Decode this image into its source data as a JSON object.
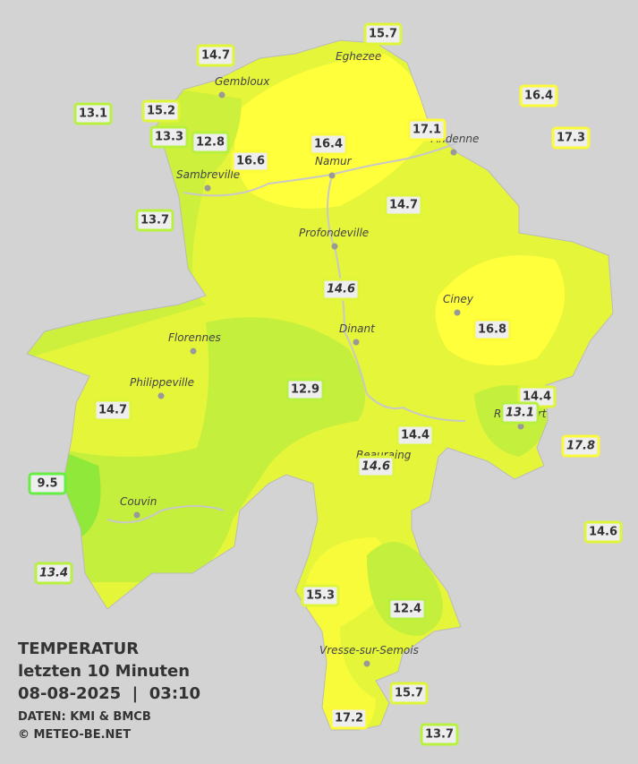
{
  "title": {
    "lines": [
      "TEMPERATUR",
      "letzten 10 Minuten",
      "08-08-2025  |  03:10"
    ],
    "credits": [
      "DATEN: KMI & BMCB",
      "© METEO-BE.NET"
    ]
  },
  "cities": [
    "Gembloux",
    "Eghezee",
    "Andenne",
    "Namur",
    "Sambreville",
    "Profondeville",
    "Ciney",
    "Dinant",
    "Florennes",
    "Philippeville",
    "Couvin",
    "Vresse-sur-Semois",
    "Rochefort",
    "Beauraing"
  ],
  "stations": [
    {
      "value": 15.7
    },
    {
      "value": 14.7
    },
    {
      "value": 16.4
    },
    {
      "value": 13.1
    },
    {
      "value": 15.2
    },
    {
      "value": 13.3
    },
    {
      "value": 12.8
    },
    {
      "value": 16.6
    },
    {
      "value": 16.4
    },
    {
      "value": 17.1
    },
    {
      "value": 17.3
    },
    {
      "value": 13.7
    },
    {
      "value": 14.7
    },
    {
      "value": 14.6,
      "style": "italic"
    },
    {
      "value": 16.8
    },
    {
      "value": 12.9
    },
    {
      "value": 14.7
    },
    {
      "value": 14.4
    },
    {
      "value": 13.1,
      "style": "italic"
    },
    {
      "value": 17.8,
      "style": "italic"
    },
    {
      "value": 14.4
    },
    {
      "value": 14.6,
      "style": "italic"
    },
    {
      "value": 9.5
    },
    {
      "value": 14.6
    },
    {
      "value": 13.4,
      "style": "italic"
    },
    {
      "value": 15.3
    },
    {
      "value": 12.4
    },
    {
      "value": 15.7
    },
    {
      "value": 17.2
    },
    {
      "value": 13.7
    }
  ]
}
